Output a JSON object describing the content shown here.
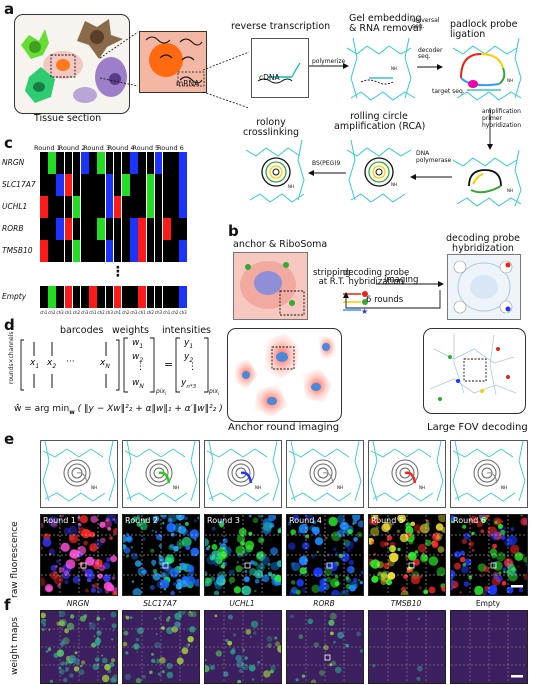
{
  "panel_labels": {
    "a": "a",
    "b": "b",
    "c": "c",
    "d": "d",
    "e": "e",
    "f": "f"
  },
  "panel_a": {
    "tissue_caption": "Tissue section",
    "mrna_label": "mRNA",
    "reverse_transcription": "reverse transcription",
    "cdna_label": "cDNA",
    "polymerize": "polymerize",
    "gel_embedding": "Gel embedding\n& RNA removal",
    "padlock": "padlock probe\nligation",
    "universal_seq": "universal\nseq.",
    "decoder_seq": "decoder\nseq.",
    "target_seq": "target seq.",
    "nh_label": "NH",
    "amp_primer": "amplification\nprimer\nhybridization",
    "dna_polymerase": "DNA\npolymerase",
    "rca": "rolling circle\namplification (RCA)",
    "bs_peg": "BS(PEG)9",
    "rolony": "rolony\ncrosslinking"
  },
  "panel_b": {
    "anchor_title": "anchor & RiboSoma",
    "stripping": "stripping\nat R.T.",
    "decoding_hyb": "decoding probe\nhybridization",
    "imaging": "imaging",
    "rounds": "6 rounds",
    "decoding_title": "decoding probe\nhybridization",
    "anchor_caption": "Anchor round imaging",
    "fov_caption": "Large FOV decoding"
  },
  "panel_c": {
    "rounds": [
      "Round 1",
      "Round 2",
      "Round 3",
      "Round 4",
      "Round 5",
      "Round 6"
    ],
    "channels": [
      "ch1",
      "ch2",
      "ch3"
    ],
    "genes": [
      "NRGN",
      "SLC17A7",
      "UCHL1",
      "RORB",
      "TMSB10"
    ],
    "empty_label": "Empty",
    "dots": "⋮",
    "colors": {
      "ch1": "#ff1a1a",
      "ch2": "#22dd22",
      "ch3": "#1a33ff",
      "off": "#000000"
    },
    "codes": [
      [
        "ch2",
        "ch3",
        "ch2",
        "ch3",
        "ch3",
        "ch3"
      ],
      [
        "ch3",
        "ch1",
        "ch3",
        "ch2",
        "ch2",
        "ch3"
      ],
      [
        "ch1",
        "ch2",
        "ch3",
        "ch1",
        "ch2",
        "ch3"
      ],
      [
        "ch3",
        "ch1",
        "ch2",
        "ch3",
        "ch1",
        "ch1"
      ],
      [
        "ch1",
        "ch2",
        "ch3",
        "ch3",
        "ch1",
        "ch3"
      ]
    ],
    "empty_code": [
      "ch2",
      "ch1",
      "ch1",
      "ch1",
      "ch1",
      "ch3"
    ]
  },
  "panel_d": {
    "barcodes": "barcodes",
    "weights": "weights",
    "intensities": "intensities",
    "rows_label": "rounds×channels",
    "x_entries": [
      "x",
      "1",
      "x",
      "2",
      "x",
      "N"
    ],
    "w_entries": [
      "w",
      "1",
      "w",
      "2",
      "w",
      "N"
    ],
    "y_entries": [
      "y",
      "1",
      "y",
      "2",
      "y",
      "n*3"
    ],
    "equals": "=",
    "pix": "pix",
    "pix_sub": "i",
    "objective_prefix": "ŵ = arg min",
    "objective_sub": "w",
    "objective_body": "( ‖y − Xw‖²₂ + α‖w‖₁ + α′‖w‖²₂ )"
  },
  "panel_e": {
    "side_label": "raw fluorescence",
    "rounds": [
      "Round 1",
      "Round 2",
      "Round 3",
      "Round 4",
      "Round 5",
      "Round 6"
    ],
    "probe_colors": [
      "#888888",
      "#22cc22",
      "#2233ff",
      "#888888",
      "#ff2222",
      "#888888"
    ]
  },
  "panel_f": {
    "side_label": "weight maps",
    "genes": [
      "NRGN",
      "SLC17A7",
      "UCHL1",
      "RORB",
      "TMSB10",
      "Empty"
    ]
  }
}
